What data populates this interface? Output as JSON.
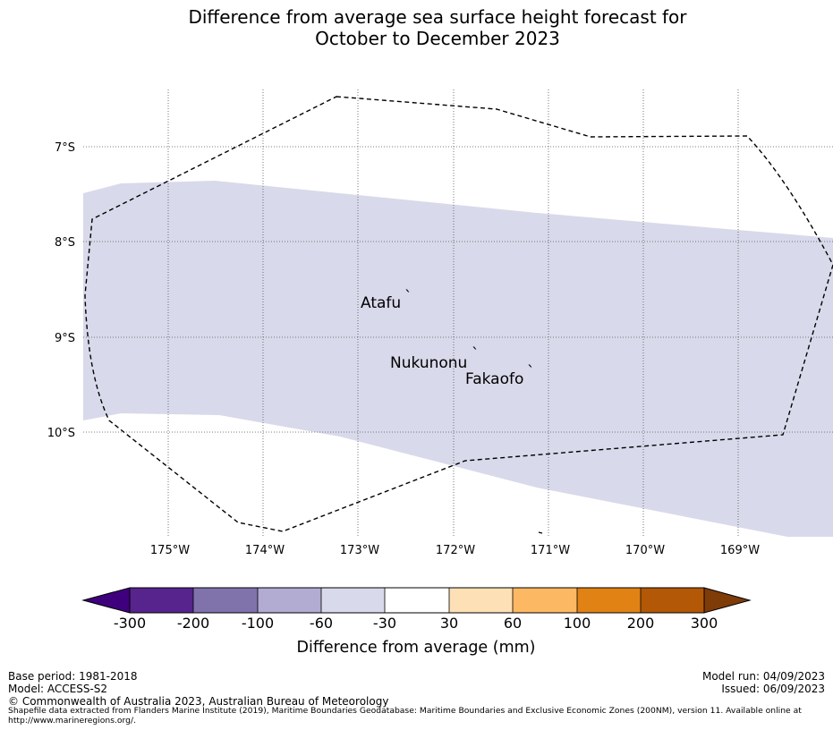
{
  "title": {
    "line1": "Difference from average sea surface height forecast for",
    "line2": "October to December 2023"
  },
  "map": {
    "lat_labels": [
      "7°S",
      "8°S",
      "9°S",
      "10°S"
    ],
    "lon_labels": [
      "175°W",
      "174°W",
      "173°W",
      "172°W",
      "171°W",
      "170°W",
      "169°W"
    ],
    "places": [
      {
        "name": "Atafu",
        "marker": "`"
      },
      {
        "name": "Nukunonu",
        "marker": "`"
      },
      {
        "name": "Fakaofo",
        "marker": "`"
      }
    ],
    "anomaly_fill_color": "#d8d9ea",
    "boundary_color": "#000000"
  },
  "colorbar": {
    "ticks": [
      "-300",
      "-200",
      "-100",
      "-60",
      "-30",
      "30",
      "60",
      "100",
      "200",
      "300"
    ],
    "colors": [
      "#3f007d",
      "#57238c",
      "#8073ac",
      "#b2abd2",
      "#d8daeb",
      "#ffffff",
      "#fee0b6",
      "#fdb863",
      "#e08214",
      "#b35806",
      "#7f3b08"
    ],
    "label": "Difference from average (mm)"
  },
  "footer": {
    "base_period": "Base period: 1981-2018",
    "model": "Model: ACCESS-S2",
    "model_run": "Model run: 04/09/2023",
    "issued": "Issued: 06/09/2023",
    "copyright": "© Commonwealth of Australia 2023, Australian Bureau of Meteorology",
    "shapefile_line1": "Shapefile data extracted from Flanders Marine Institute (2019), Maritime Boundaries Geodatabase: Maritime Boundaries and Exclusive Economic Zones (200NM), version 11. Available online at",
    "shapefile_line2": "http://www.marineregions.org/."
  }
}
